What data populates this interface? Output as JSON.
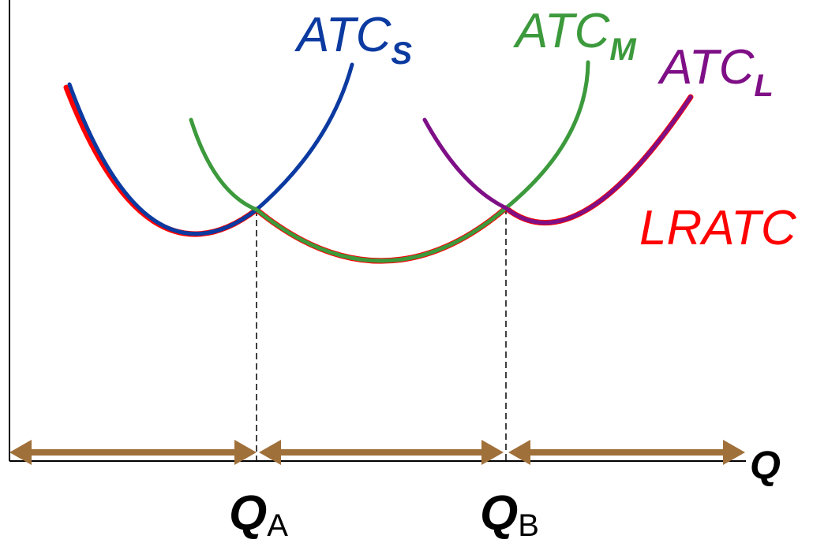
{
  "colors": {
    "atc_s": "#0b3aa0",
    "atc_m": "#3c9a3c",
    "atc_l": "#7f0f86",
    "lratc": "#ff0000",
    "arrows": "#a0703a",
    "axis": "#000000"
  },
  "labels": {
    "atc_s": {
      "main": "ATC",
      "sub": "S"
    },
    "atc_m": {
      "main": "ATC",
      "sub": "M"
    },
    "atc_l": {
      "main": "ATC",
      "sub": "L"
    },
    "lratc": "LRATC",
    "axis_q": "Q",
    "q_a": {
      "main": "Q",
      "sub": "A"
    },
    "q_b": {
      "main": "Q",
      "sub": "B"
    }
  }
}
